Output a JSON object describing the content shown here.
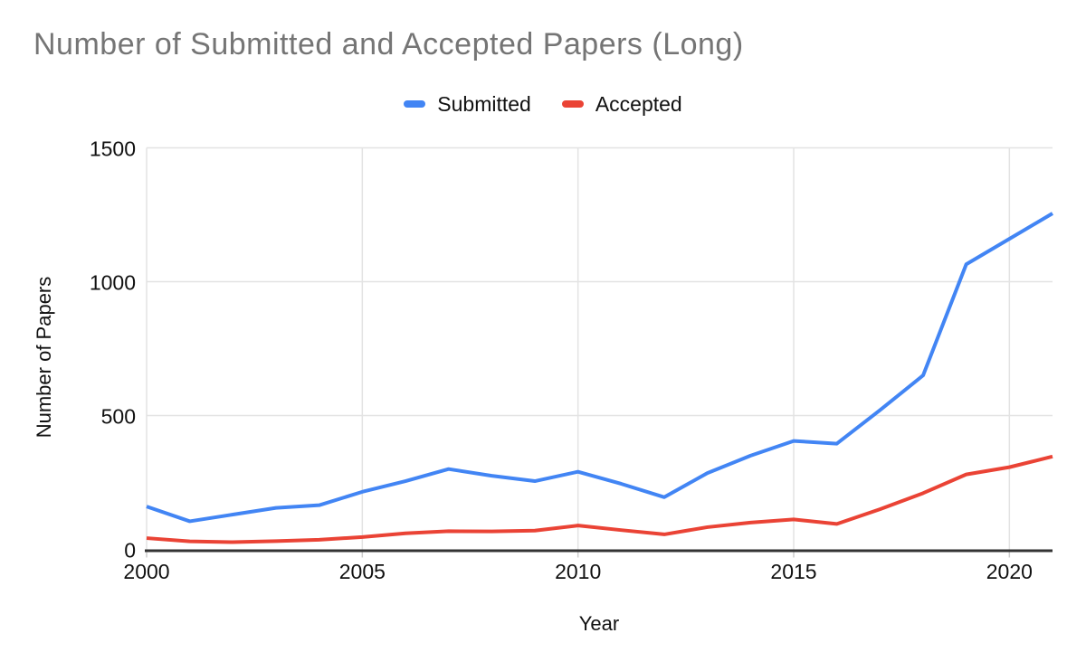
{
  "chart_data": {
    "type": "line",
    "title": "Number of Submitted and Accepted Papers (Long)",
    "xlabel": "Year",
    "ylabel": "Number of Papers",
    "x": [
      2000,
      2001,
      2002,
      2003,
      2004,
      2005,
      2006,
      2007,
      2008,
      2009,
      2010,
      2011,
      2012,
      2013,
      2014,
      2015,
      2016,
      2017,
      2018,
      2019,
      2020,
      2021
    ],
    "series": [
      {
        "name": "Submitted",
        "color": "#4285F4",
        "values": [
          160,
          105,
          130,
          155,
          165,
          215,
          255,
          300,
          275,
          255,
          290,
          245,
          195,
          285,
          350,
          405,
          395,
          520,
          650,
          1065,
          1160,
          1255
        ]
      },
      {
        "name": "Accepted",
        "color": "#EA4335",
        "values": [
          42,
          30,
          27,
          31,
          36,
          46,
          60,
          68,
          67,
          70,
          89,
          72,
          56,
          83,
          100,
          112,
          95,
          150,
          210,
          280,
          307,
          347
        ]
      }
    ],
    "xlim": [
      2000,
      2021
    ],
    "ylim": [
      0,
      1500
    ],
    "xticks": [
      2000,
      2005,
      2010,
      2015,
      2020
    ],
    "yticks": [
      0,
      500,
      1000,
      1500
    ],
    "grid": true,
    "legend_position": "top",
    "style": {
      "title_color": "#757575",
      "gridline_color": "#e3e3e3",
      "axis_line_color": "#333333",
      "tick_color": "#cccccc",
      "label_color": "#111111",
      "background": "#ffffff"
    }
  }
}
